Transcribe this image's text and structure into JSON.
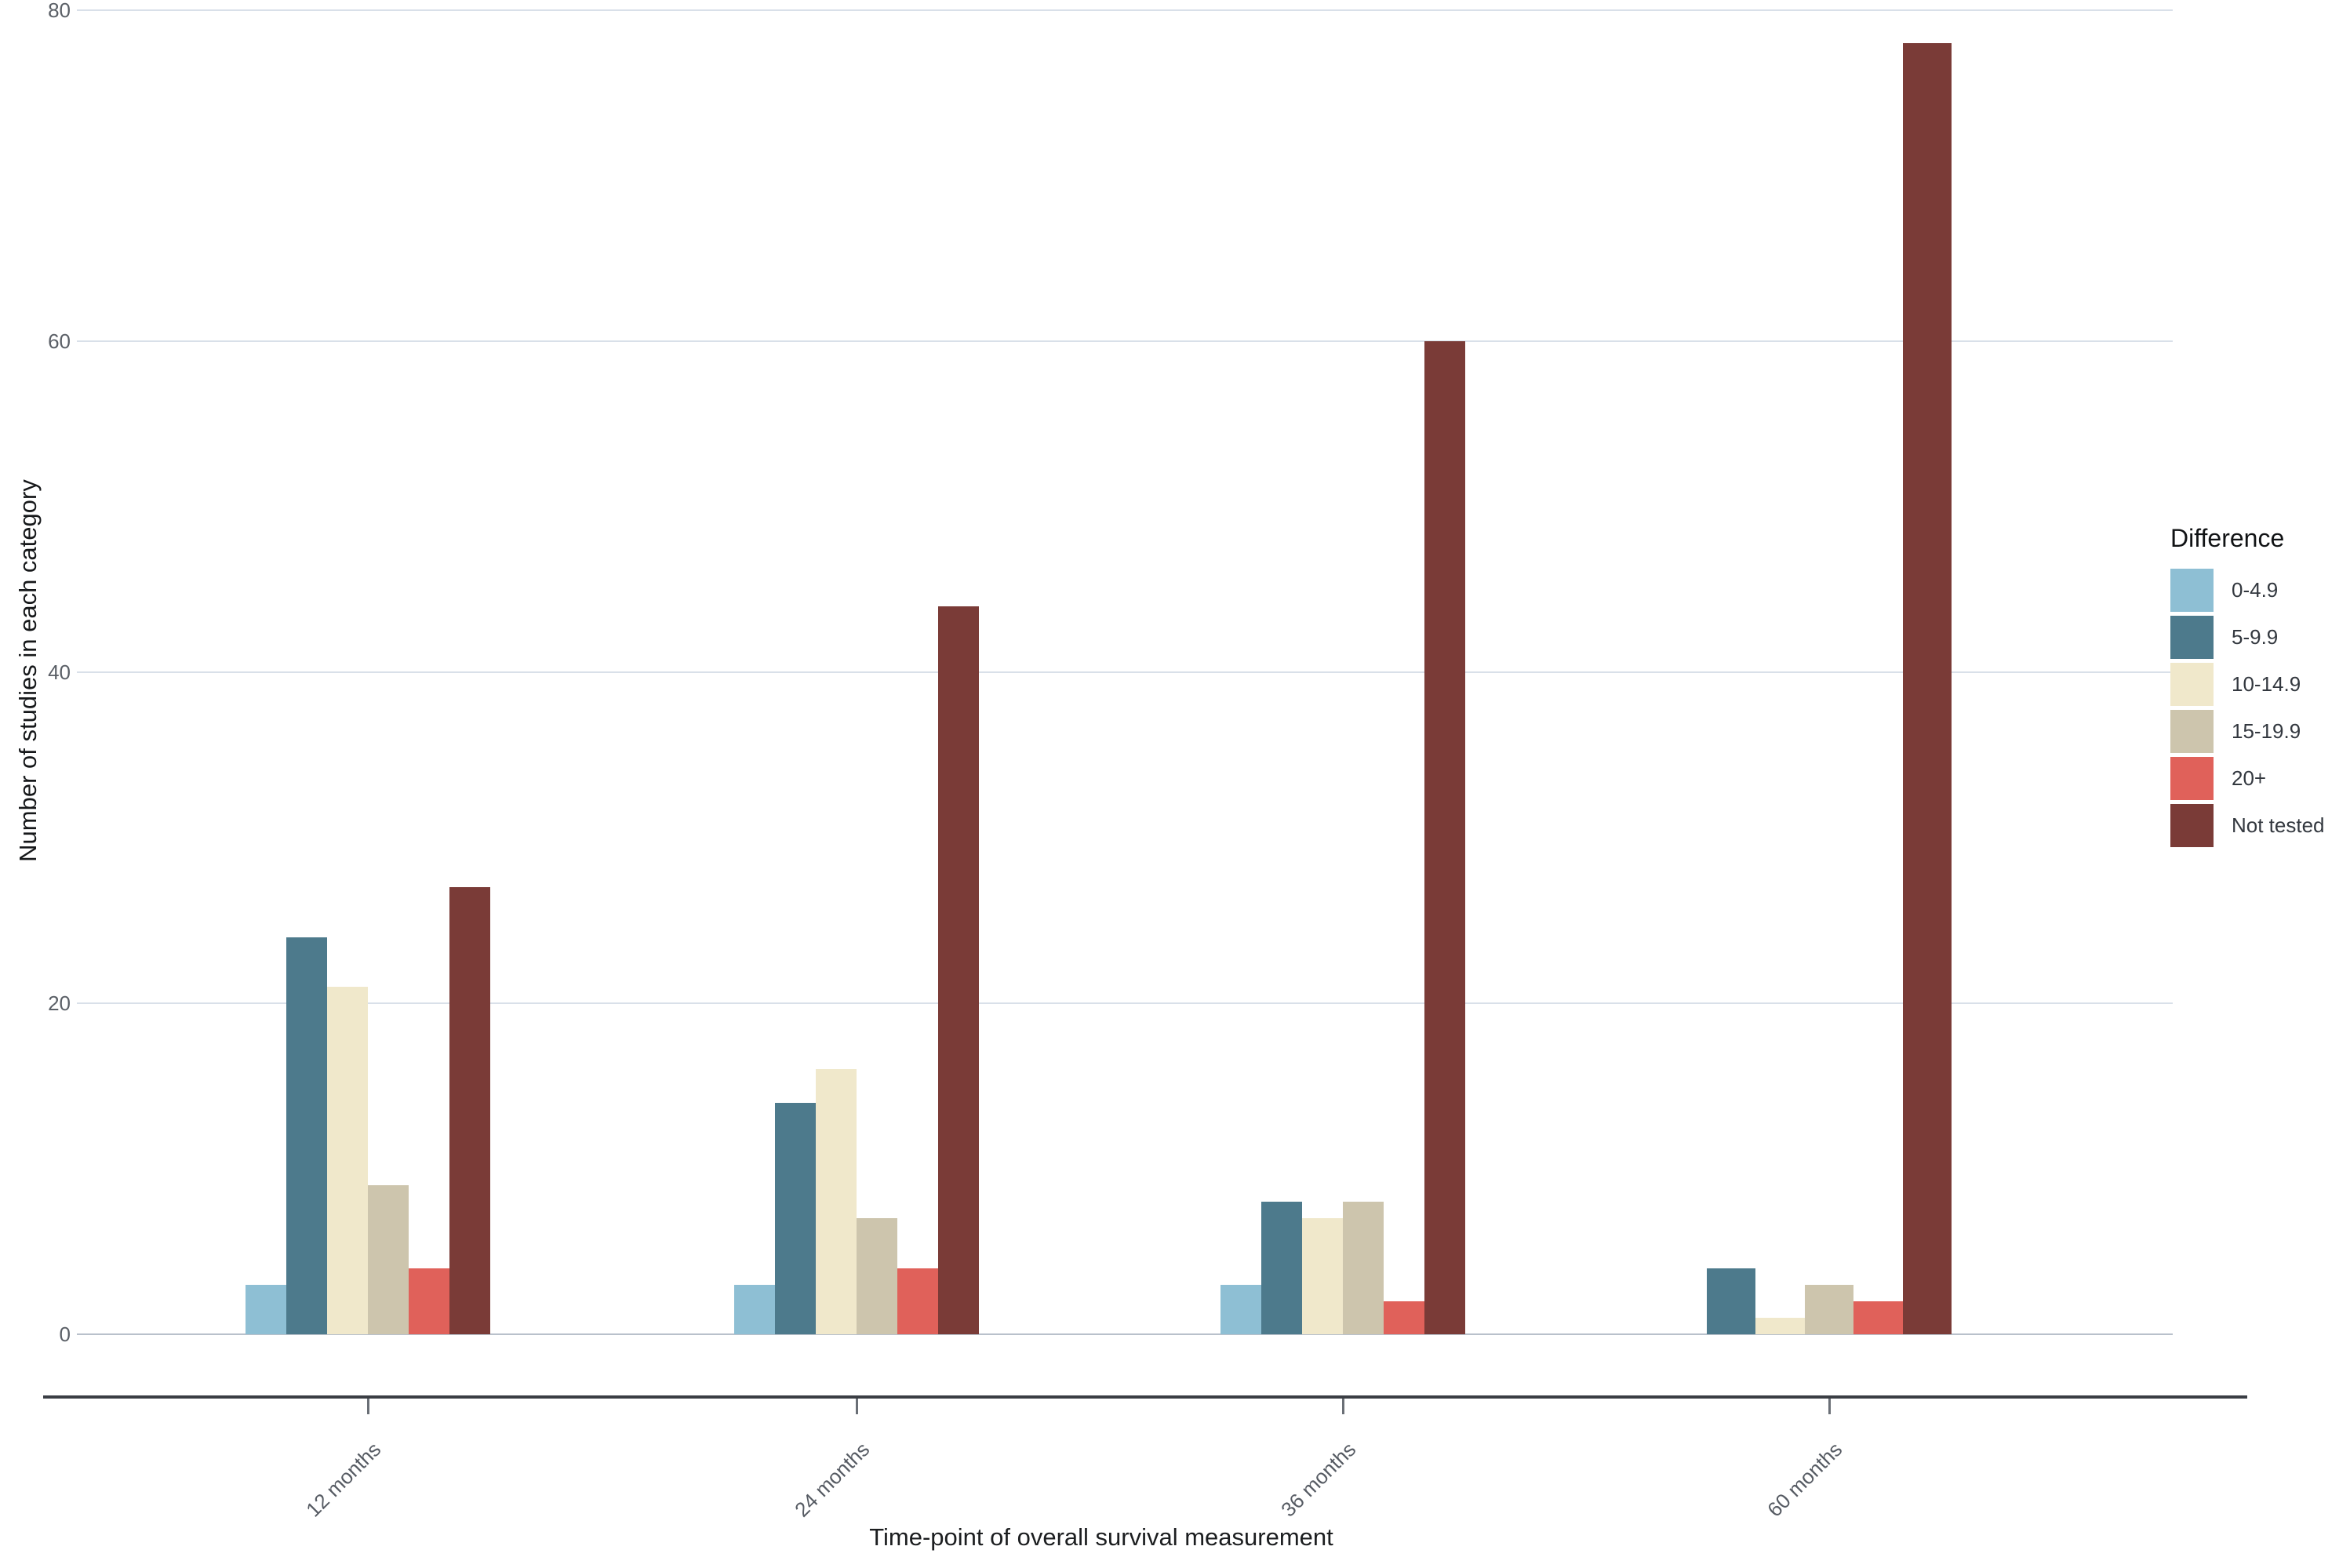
{
  "chart_data": {
    "type": "bar",
    "title": "",
    "xlabel": "Time-point of overall survival measurement",
    "ylabel": "Number of studies in each category",
    "legend_title": "Difference",
    "legend_position": "right",
    "grid": true,
    "ylim": [
      0,
      80
    ],
    "yticks": [
      0,
      20,
      40,
      60,
      80
    ],
    "categories": [
      "12 months",
      "24 months",
      "36 months",
      "60 months"
    ],
    "series": [
      {
        "name": "0-4.9",
        "color": "#8ebfd4",
        "values": [
          3,
          3,
          3,
          0
        ]
      },
      {
        "name": "5-9.9",
        "color": "#4d7a8c",
        "values": [
          24,
          14,
          8,
          4
        ]
      },
      {
        "name": "10-14.9",
        "color": "#f0e8cb",
        "values": [
          21,
          16,
          7,
          1
        ]
      },
      {
        "name": "15-19.9",
        "color": "#cdc5ad",
        "values": [
          9,
          7,
          8,
          3
        ]
      },
      {
        "name": "20+",
        "color": "#e0615a",
        "values": [
          4,
          4,
          2,
          2
        ]
      },
      {
        "name": "Not tested",
        "color": "#7a3b37",
        "values": [
          27,
          44,
          60,
          78
        ]
      }
    ]
  }
}
